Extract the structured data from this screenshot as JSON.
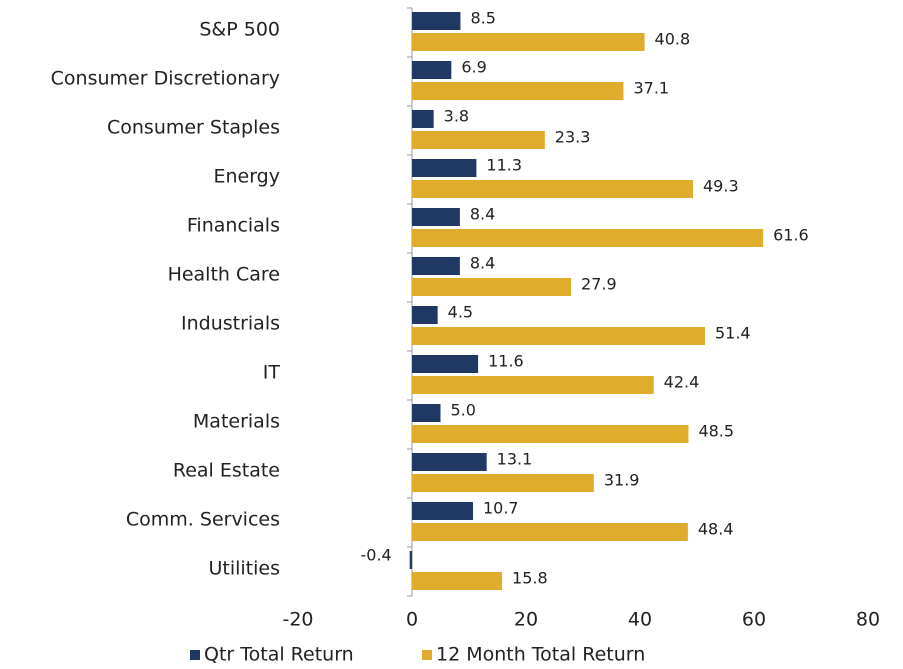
{
  "chart_data": {
    "type": "bar",
    "orientation": "horizontal",
    "categories": [
      "S&P 500",
      "Consumer Discretionary",
      "Consumer Staples",
      "Energy",
      "Financials",
      "Health Care",
      "Industrials",
      "IT",
      "Materials",
      "Real Estate",
      "Comm. Services",
      "Utilities"
    ],
    "series": [
      {
        "name": "Qtr Total Return",
        "color": "#1f3864",
        "values": [
          8.5,
          6.9,
          3.8,
          11.3,
          8.4,
          8.4,
          4.5,
          11.6,
          5.0,
          13.1,
          10.7,
          -0.4
        ],
        "value_labels": [
          "8.5",
          "6.9",
          "3.8",
          "11.3",
          "8.4",
          "8.4",
          "4.5",
          "11.6",
          "5.0",
          "13.1",
          "10.7",
          "-0.4"
        ]
      },
      {
        "name": "12 Month Total Return",
        "color": "#e0ac2b",
        "values": [
          40.8,
          37.1,
          23.3,
          49.3,
          61.6,
          27.9,
          51.4,
          42.4,
          48.5,
          31.9,
          48.4,
          15.8
        ],
        "value_labels": [
          "40.8",
          "37.1",
          "23.3",
          "49.3",
          "61.6",
          "27.9",
          "51.4",
          "42.4",
          "48.5",
          "31.9",
          "48.4",
          "15.8"
        ]
      }
    ],
    "xlim": [
      -20,
      80
    ],
    "xticks": [
      -20,
      0,
      20,
      40,
      60,
      80
    ],
    "legend": "bottom"
  }
}
